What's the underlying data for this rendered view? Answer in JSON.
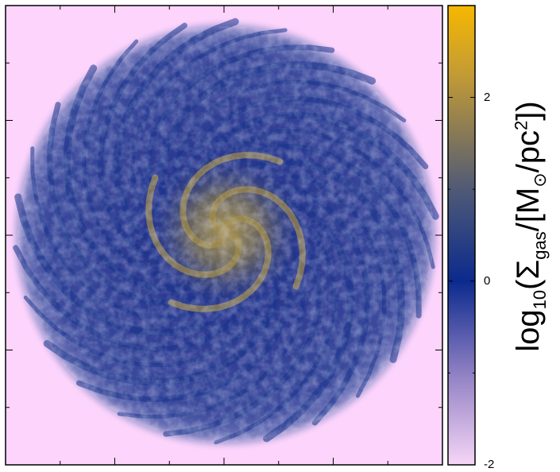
{
  "colorbar": {
    "label": {
      "prefix": "log",
      "sub": "10",
      "open": "(Σ",
      "gas_sub": "gas",
      "mid": "/[M",
      "sun_sub": "⊙",
      "unit": "/pc",
      "sup": "2",
      "close": "])"
    },
    "ticks": [
      "2",
      "0",
      "-2"
    ],
    "range": [
      -2,
      3
    ],
    "colors": [
      "#f6d6f7",
      "#8f7fc3",
      "#0b2a8d",
      "#505a76",
      "#c39b35",
      "#f6b800"
    ]
  },
  "image": {
    "background_color": "#fdd4fc",
    "disk_color": "#3d4d9a",
    "arm_color": "#17338a",
    "core_color": "#a28d48"
  }
}
